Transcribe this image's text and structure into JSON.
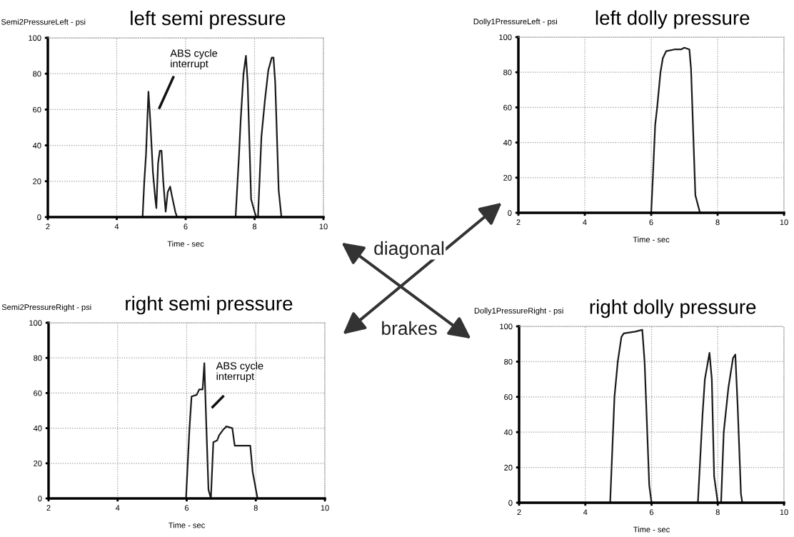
{
  "chart_data": [
    {
      "type": "line",
      "title": "left semi pressure",
      "ylabel": "Semi2PressureLeft - psi",
      "xlabel": "Time - sec",
      "annotations": [
        "ABS cycle\ninterrupt"
      ],
      "xlim": [
        2,
        10
      ],
      "ylim": [
        0,
        100
      ],
      "xticks": [
        2,
        4,
        6,
        8,
        10
      ],
      "yticks": [
        0,
        20,
        40,
        60,
        80,
        100
      ],
      "grid": true,
      "marker": "none",
      "line_style": "solid",
      "series": [
        {
          "color": "#1a1a1a",
          "x": [
            2,
            4.75,
            4.8,
            4.85,
            4.92,
            4.97,
            5.05,
            5.12,
            5.15,
            5.2,
            5.25,
            5.3,
            5.35,
            5.42,
            5.48,
            5.55,
            5.6,
            5.7,
            5.75,
            7.45,
            7.55,
            7.6,
            7.68,
            7.75,
            7.8,
            7.9,
            8.0,
            8.05,
            8.1,
            8.2,
            8.3,
            8.4,
            8.5,
            8.55,
            8.6,
            8.7,
            8.78,
            10
          ],
          "values": [
            0,
            0,
            20,
            35,
            70,
            55,
            25,
            10,
            5,
            30,
            37,
            37,
            20,
            3,
            14,
            17,
            12,
            3,
            0,
            0,
            35,
            55,
            80,
            90,
            75,
            10,
            3,
            0,
            0,
            45,
            65,
            82,
            89,
            89,
            75,
            15,
            0,
            0
          ]
        }
      ]
    },
    {
      "type": "line",
      "title": "left dolly pressure",
      "ylabel": "Dolly1PressureLeft - psi",
      "xlabel": "Time - sec",
      "xlim": [
        2,
        10
      ],
      "ylim": [
        0,
        100
      ],
      "xticks": [
        2,
        4,
        6,
        8,
        10
      ],
      "yticks": [
        0,
        20,
        40,
        60,
        80,
        100
      ],
      "grid": true,
      "marker": "none",
      "line_style": "solid",
      "series": [
        {
          "color": "#1a1a1a",
          "x": [
            2,
            6.0,
            6.05,
            6.12,
            6.18,
            6.28,
            6.35,
            6.45,
            6.7,
            6.9,
            7.0,
            7.15,
            7.2,
            7.33,
            7.47,
            10
          ],
          "values": [
            0,
            0,
            20,
            50,
            60,
            80,
            88,
            92,
            93,
            93,
            94,
            93,
            82,
            10,
            0,
            0
          ]
        }
      ]
    },
    {
      "type": "line",
      "title": "right semi pressure",
      "ylabel": "Semi2PressureRight - psi",
      "xlabel": "Time - sec",
      "annotations": [
        "ABS cycle\ninterrupt"
      ],
      "xlim": [
        2,
        10
      ],
      "ylim": [
        0,
        100
      ],
      "xticks": [
        2,
        4,
        6,
        8,
        10
      ],
      "yticks": [
        0,
        20,
        40,
        60,
        80,
        100
      ],
      "grid": true,
      "marker": "none",
      "line_style": "solid",
      "series": [
        {
          "color": "#1a1a1a",
          "x": [
            2,
            5.98,
            6.08,
            6.14,
            6.29,
            6.36,
            6.46,
            6.51,
            6.57,
            6.63,
            6.7,
            6.77,
            6.88,
            6.94,
            7.05,
            7.15,
            7.32,
            7.39,
            7.84,
            7.91,
            8.05,
            10
          ],
          "values": [
            0,
            0,
            40,
            58,
            59,
            62,
            62,
            77,
            40,
            5,
            0,
            32,
            33,
            36,
            39,
            41,
            40,
            30,
            30,
            15,
            0,
            0
          ]
        }
      ]
    },
    {
      "type": "line",
      "title": "right dolly pressure",
      "ylabel": "Dolly1PressureRight - psi",
      "xlabel": "Time - sec",
      "xlim": [
        2,
        10
      ],
      "ylim": [
        0,
        100
      ],
      "xticks": [
        2,
        4,
        6,
        8,
        10
      ],
      "yticks": [
        0,
        20,
        40,
        60,
        80,
        100
      ],
      "grid": true,
      "marker": "none",
      "line_style": "solid",
      "series": [
        {
          "color": "#1a1a1a",
          "x": [
            2,
            4.75,
            4.88,
            4.98,
            5.09,
            5.16,
            5.51,
            5.72,
            5.79,
            5.93,
            6.0,
            7.4,
            7.54,
            7.61,
            7.75,
            7.82,
            7.89,
            8.0,
            8.1,
            8.18,
            8.32,
            8.46,
            8.53,
            8.6,
            8.7,
            8.74,
            10
          ],
          "values": [
            0,
            0,
            60,
            80,
            94,
            96,
            97,
            98,
            80,
            10,
            0,
            0,
            50,
            70,
            85,
            70,
            15,
            0,
            0,
            40,
            65,
            82,
            84,
            55,
            5,
            0,
            0
          ]
        }
      ]
    },
    {
      "type": "other",
      "annotations": [
        "diagonal",
        "brakes"
      ]
    }
  ]
}
